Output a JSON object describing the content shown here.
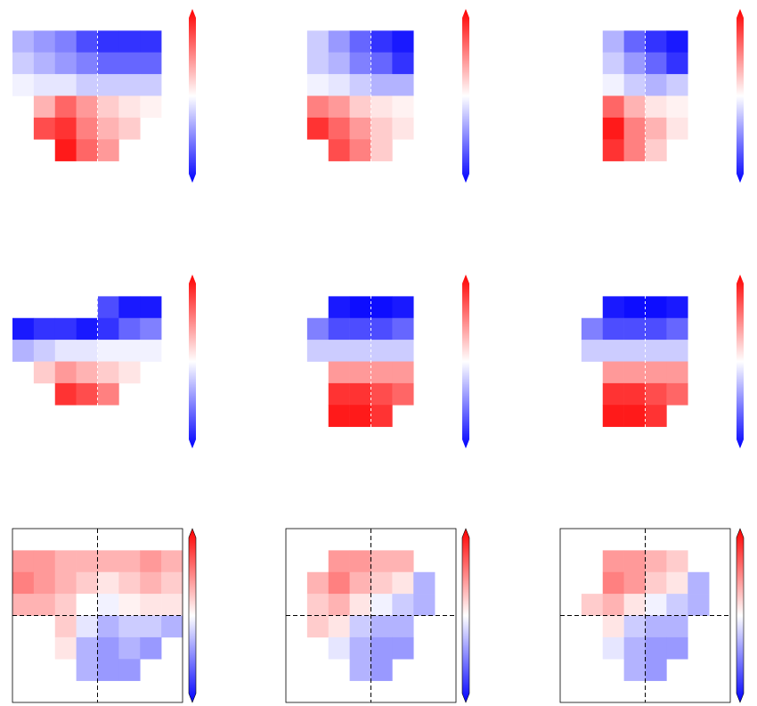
{
  "chart_data": [
    {
      "type": "heatmap",
      "cmap": [
        "#0000ff",
        "#ffffff",
        "#ff0000"
      ],
      "zlim": [
        -1,
        1
      ],
      "frame": false,
      "crosshair_color": "#ffffff",
      "values": [
        [
          null,
          null,
          null,
          null,
          null,
          null,
          null,
          null
        ],
        [
          -0.3,
          -0.4,
          -0.5,
          -0.7,
          -0.8,
          -0.8,
          -0.8,
          null
        ],
        [
          -0.2,
          -0.3,
          -0.4,
          -0.5,
          -0.6,
          -0.6,
          -0.6,
          null
        ],
        [
          -0.05,
          -0.1,
          -0.1,
          -0.2,
          -0.2,
          -0.2,
          -0.2,
          null
        ],
        [
          null,
          0.3,
          0.6,
          0.4,
          0.2,
          0.1,
          0.05,
          null
        ],
        [
          null,
          0.7,
          0.8,
          0.5,
          0.3,
          0.2,
          null,
          null
        ],
        [
          null,
          null,
          0.9,
          0.6,
          0.4,
          null,
          null,
          null
        ],
        [
          null,
          null,
          null,
          null,
          null,
          null,
          null,
          null
        ]
      ]
    },
    {
      "type": "heatmap",
      "cmap": [
        "#0000ff",
        "#ffffff",
        "#ff0000"
      ],
      "zlim": [
        -1,
        1
      ],
      "frame": false,
      "crosshair_color": "#ffffff",
      "values": [
        [
          null,
          null,
          null,
          null,
          null,
          null,
          null,
          null
        ],
        [
          null,
          -0.2,
          -0.4,
          -0.6,
          -0.8,
          -0.9,
          null,
          null
        ],
        [
          null,
          -0.2,
          -0.3,
          -0.5,
          -0.6,
          -0.8,
          null,
          null
        ],
        [
          null,
          -0.05,
          -0.1,
          -0.2,
          -0.3,
          -0.3,
          null,
          null
        ],
        [
          null,
          0.5,
          0.4,
          0.2,
          0.1,
          0.05,
          null,
          null
        ],
        [
          null,
          0.8,
          0.6,
          0.4,
          0.2,
          0.1,
          null,
          null
        ],
        [
          null,
          null,
          0.7,
          0.5,
          0.2,
          null,
          null,
          null
        ],
        [
          null,
          null,
          null,
          null,
          null,
          null,
          null,
          null
        ]
      ]
    },
    {
      "type": "heatmap",
      "cmap": [
        "#0000ff",
        "#ffffff",
        "#ff0000"
      ],
      "zlim": [
        -1,
        1
      ],
      "frame": false,
      "crosshair_color": "#ffffff",
      "values": [
        [
          null,
          null,
          null,
          null,
          null,
          null,
          null,
          null
        ],
        [
          null,
          null,
          -0.3,
          -0.6,
          -0.8,
          -0.9,
          null,
          null
        ],
        [
          null,
          null,
          -0.2,
          -0.4,
          -0.6,
          -0.8,
          null,
          null
        ],
        [
          null,
          null,
          -0.05,
          -0.2,
          -0.3,
          -0.2,
          null,
          null
        ],
        [
          null,
          null,
          0.6,
          0.3,
          0.1,
          0.05,
          null,
          null
        ],
        [
          null,
          null,
          0.9,
          0.5,
          0.3,
          0.1,
          null,
          null
        ],
        [
          null,
          null,
          0.8,
          0.5,
          0.2,
          null,
          null,
          null
        ],
        [
          null,
          null,
          null,
          null,
          null,
          null,
          null,
          null
        ]
      ]
    },
    {
      "type": "heatmap",
      "cmap": [
        "#0000ff",
        "#ffffff",
        "#ff0000"
      ],
      "zlim": [
        -1,
        1
      ],
      "frame": false,
      "crosshair_color": "#ffffff",
      "values": [
        [
          null,
          null,
          null,
          null,
          null,
          null,
          null,
          null
        ],
        [
          null,
          null,
          null,
          null,
          -0.7,
          -0.9,
          -0.9,
          null
        ],
        [
          -0.9,
          -0.8,
          -0.8,
          -0.9,
          -0.8,
          -0.6,
          -0.5,
          null
        ],
        [
          -0.3,
          -0.2,
          -0.1,
          -0.1,
          -0.05,
          -0.05,
          -0.05,
          null
        ],
        [
          null,
          0.2,
          0.4,
          0.3,
          0.2,
          0.1,
          null,
          null
        ],
        [
          null,
          null,
          0.8,
          0.7,
          0.5,
          null,
          null,
          null
        ],
        [
          null,
          null,
          null,
          null,
          null,
          null,
          null,
          null
        ],
        [
          null,
          null,
          null,
          null,
          null,
          null,
          null,
          null
        ]
      ]
    },
    {
      "type": "heatmap",
      "cmap": [
        "#0000ff",
        "#ffffff",
        "#ff0000"
      ],
      "zlim": [
        -1,
        1
      ],
      "frame": false,
      "crosshair_color": "#ffffff",
      "values": [
        [
          null,
          null,
          null,
          null,
          null,
          null,
          null,
          null
        ],
        [
          null,
          null,
          -0.9,
          -0.95,
          -0.95,
          -0.9,
          null,
          null
        ],
        [
          null,
          -0.5,
          -0.7,
          -0.7,
          -0.7,
          -0.6,
          null,
          null
        ],
        [
          null,
          -0.2,
          -0.2,
          -0.2,
          -0.2,
          -0.2,
          null,
          null
        ],
        [
          null,
          null,
          0.4,
          0.4,
          0.4,
          0.4,
          null,
          null
        ],
        [
          null,
          null,
          0.8,
          0.8,
          0.7,
          0.6,
          null,
          null
        ],
        [
          null,
          null,
          0.9,
          0.9,
          0.8,
          null,
          null,
          null
        ],
        [
          null,
          null,
          null,
          null,
          null,
          null,
          null,
          null
        ]
      ]
    },
    {
      "type": "heatmap",
      "cmap": [
        "#0000ff",
        "#ffffff",
        "#ff0000"
      ],
      "zlim": [
        -1,
        1
      ],
      "frame": false,
      "crosshair_color": "#ffffff",
      "values": [
        [
          null,
          null,
          null,
          null,
          null,
          null,
          null,
          null
        ],
        [
          null,
          null,
          -0.9,
          -0.95,
          -0.95,
          -0.9,
          null,
          null
        ],
        [
          null,
          -0.5,
          -0.7,
          -0.7,
          -0.7,
          -0.6,
          null,
          null
        ],
        [
          null,
          -0.2,
          -0.2,
          -0.2,
          -0.2,
          -0.2,
          null,
          null
        ],
        [
          null,
          null,
          0.4,
          0.4,
          0.4,
          0.4,
          null,
          null
        ],
        [
          null,
          null,
          0.8,
          0.8,
          0.7,
          0.6,
          null,
          null
        ],
        [
          null,
          null,
          0.9,
          0.9,
          0.8,
          null,
          null,
          null
        ],
        [
          null,
          null,
          null,
          null,
          null,
          null,
          null,
          null
        ]
      ]
    },
    {
      "type": "heatmap",
      "cmap": [
        "#0000ff",
        "#ffffff",
        "#ff0000"
      ],
      "zlim": [
        -1,
        1
      ],
      "frame": true,
      "crosshair_color": "#000000",
      "values": [
        [
          null,
          null,
          null,
          null,
          null,
          null,
          null,
          null
        ],
        [
          0.4,
          0.4,
          0.3,
          0.3,
          0.3,
          0.3,
          0.4,
          0.3
        ],
        [
          0.5,
          0.4,
          0.3,
          0.2,
          0.1,
          0.2,
          0.3,
          0.2
        ],
        [
          0.3,
          0.3,
          0.2,
          0.0,
          -0.05,
          0.05,
          0.1,
          0.1
        ],
        [
          null,
          null,
          0.2,
          -0.1,
          -0.3,
          -0.2,
          -0.2,
          -0.3
        ],
        [
          null,
          null,
          0.1,
          -0.3,
          -0.4,
          -0.3,
          -0.4,
          null
        ],
        [
          null,
          null,
          null,
          -0.3,
          -0.4,
          -0.4,
          null,
          null
        ],
        [
          null,
          null,
          null,
          null,
          null,
          null,
          null,
          null
        ]
      ]
    },
    {
      "type": "heatmap",
      "cmap": [
        "#0000ff",
        "#ffffff",
        "#ff0000"
      ],
      "zlim": [
        -1,
        1
      ],
      "frame": true,
      "crosshair_color": "#000000",
      "values": [
        [
          null,
          null,
          null,
          null,
          null,
          null,
          null,
          null
        ],
        [
          null,
          null,
          0.4,
          0.4,
          0.3,
          0.3,
          null,
          null
        ],
        [
          null,
          0.3,
          0.5,
          0.3,
          0.2,
          0.1,
          -0.3,
          null
        ],
        [
          null,
          0.2,
          0.3,
          0.1,
          -0.05,
          -0.2,
          -0.3,
          null
        ],
        [
          null,
          0.2,
          0.1,
          -0.2,
          -0.3,
          -0.3,
          null,
          null
        ],
        [
          null,
          null,
          -0.1,
          -0.3,
          -0.4,
          -0.4,
          null,
          null
        ],
        [
          null,
          null,
          null,
          -0.3,
          -0.4,
          null,
          null,
          null
        ],
        [
          null,
          null,
          null,
          null,
          null,
          null,
          null,
          null
        ]
      ]
    },
    {
      "type": "heatmap",
      "cmap": [
        "#0000ff",
        "#ffffff",
        "#ff0000"
      ],
      "zlim": [
        -1,
        1
      ],
      "frame": true,
      "crosshair_color": "#000000",
      "values": [
        [
          null,
          null,
          null,
          null,
          null,
          null,
          null,
          null
        ],
        [
          null,
          null,
          0.4,
          0.4,
          0.3,
          0.2,
          null,
          null
        ],
        [
          null,
          null,
          0.5,
          0.4,
          0.2,
          0.1,
          -0.3,
          null
        ],
        [
          null,
          0.2,
          0.3,
          0.1,
          -0.05,
          -0.2,
          -0.3,
          null
        ],
        [
          null,
          null,
          0.1,
          -0.2,
          -0.3,
          -0.3,
          null,
          null
        ],
        [
          null,
          null,
          -0.1,
          -0.3,
          -0.4,
          -0.4,
          null,
          null
        ],
        [
          null,
          null,
          null,
          -0.3,
          -0.4,
          null,
          null,
          null
        ],
        [
          null,
          null,
          null,
          null,
          null,
          null,
          null,
          null
        ]
      ]
    }
  ]
}
